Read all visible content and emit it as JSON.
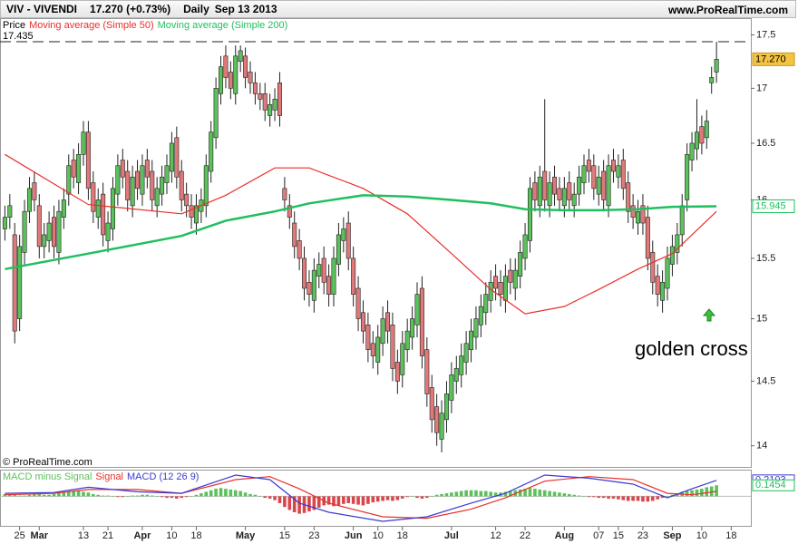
{
  "header": {
    "title": "VIV - VIVENDI",
    "last": "17.270 (+0.73%)",
    "period": "Daily",
    "date": "Sep 13 2013",
    "source": "www.ProRealTime.com",
    "copyright": "© ProRealTime.com"
  },
  "chart_data": [
    {
      "type": "candlestick",
      "log_scale": true,
      "grid": false,
      "xlim": [
        -1,
        152
      ],
      "ylim": [
        13.84,
        17.66
      ],
      "yticks": [
        14,
        14.5,
        15,
        15.5,
        16,
        16.5,
        17,
        17.5
      ],
      "xticks": [
        {
          "value": 3,
          "label": "25"
        },
        {
          "value": 7,
          "label": "Mar"
        },
        {
          "value": 16,
          "label": "13"
        },
        {
          "value": 21,
          "label": "21"
        },
        {
          "value": 28,
          "label": "Apr"
        },
        {
          "value": 34,
          "label": "10"
        },
        {
          "value": 39,
          "label": "18"
        },
        {
          "value": 49,
          "label": "May"
        },
        {
          "value": 57,
          "label": "15"
        },
        {
          "value": 63,
          "label": "23"
        },
        {
          "value": 71,
          "label": "Jun"
        },
        {
          "value": 76,
          "label": "10"
        },
        {
          "value": 81,
          "label": "18"
        },
        {
          "value": 91,
          "label": "Jul"
        },
        {
          "value": 100,
          "label": "12"
        },
        {
          "value": 106,
          "label": "22"
        },
        {
          "value": 114,
          "label": "Aug"
        },
        {
          "value": 121,
          "label": "07"
        },
        {
          "value": 125,
          "label": "15"
        },
        {
          "value": 130,
          "label": "23"
        },
        {
          "value": 136,
          "label": "Sep"
        },
        {
          "value": 142,
          "label": "10"
        },
        {
          "value": 148,
          "label": "18"
        }
      ],
      "reference_line": {
        "value": 17.435,
        "label": "17.435"
      },
      "annotation": "golden cross",
      "tags": [
        {
          "value": 17.27,
          "label": "17.270",
          "color": "#f5c342"
        },
        {
          "value": 15.945,
          "label": "15.945",
          "color": "#1fbf5f"
        }
      ],
      "series": [
        {
          "name": "Price",
          "up_color": "#5cc05c",
          "down_color": "#e07a7a",
          "open": [
            15.75,
            15.85,
            15.7,
            15.0,
            15.55,
            15.9,
            16.15,
            15.95,
            15.6,
            15.65,
            15.85,
            15.55,
            15.85,
            16.05,
            16.35,
            16.15,
            16.4,
            16.6,
            16.15,
            15.85,
            16.05,
            15.65,
            15.75,
            16.05,
            16.35,
            16.25,
            15.95,
            16.25,
            16.05,
            16.35,
            16.25,
            15.95,
            16.05,
            16.15,
            16.25,
            16.55,
            16.25,
            16.05,
            15.95,
            15.8,
            15.9,
            15.95,
            16.25,
            16.55,
            16.95,
            17.3,
            17.15,
            16.95,
            17.25,
            17.3,
            17.15,
            17.05,
            16.95,
            16.95,
            16.75,
            16.8,
            17.05,
            16.1,
            15.95,
            15.8,
            15.65,
            15.5,
            15.3,
            15.15,
            15.35,
            15.5,
            15.35,
            15.2,
            15.45,
            15.65,
            15.8,
            15.5,
            15.25,
            15.05,
            14.95,
            14.8,
            14.65,
            14.8,
            15.05,
            14.95,
            14.65,
            14.55,
            14.75,
            14.85,
            14.95,
            15.25,
            14.75,
            14.45,
            14.3,
            14.05,
            14.2,
            14.35,
            14.5,
            14.55,
            14.65,
            14.75,
            14.85,
            14.95,
            15.05,
            15.15,
            15.35,
            15.3,
            15.15,
            15.4,
            15.25,
            15.35,
            15.5,
            15.65,
            16.15,
            15.95,
            16.25,
            15.95,
            16.2,
            16.1,
            15.95,
            16.15,
            15.95,
            16.05,
            16.15,
            16.35,
            16.3,
            16.05,
            16.25,
            15.95,
            16.35,
            16.2,
            16.35,
            16.15,
            15.95,
            15.8,
            15.95,
            15.85,
            15.55,
            15.35,
            15.15,
            15.25,
            15.45,
            15.55,
            15.7,
            16.0,
            16.35,
            16.45,
            16.65,
            16.55,
            17.05,
            17.15
          ],
          "high": [
            15.95,
            16.05,
            15.8,
            15.7,
            16.0,
            16.2,
            16.25,
            16.05,
            15.8,
            15.9,
            15.95,
            16.0,
            16.1,
            16.4,
            16.45,
            16.5,
            16.7,
            16.7,
            16.25,
            16.1,
            16.15,
            15.9,
            16.2,
            16.4,
            16.45,
            16.35,
            16.3,
            16.35,
            16.4,
            16.45,
            16.35,
            16.2,
            16.3,
            16.4,
            16.6,
            16.65,
            16.35,
            16.15,
            16.05,
            16.05,
            16.1,
            16.4,
            16.7,
            17.1,
            17.3,
            17.4,
            17.25,
            17.4,
            17.4,
            17.38,
            17.25,
            17.15,
            17.05,
            17.05,
            16.95,
            17.0,
            17.15,
            16.2,
            16.05,
            15.9,
            15.75,
            15.6,
            15.4,
            15.5,
            15.55,
            15.6,
            15.45,
            15.6,
            15.8,
            15.85,
            15.9,
            15.6,
            15.35,
            15.15,
            15.05,
            14.9,
            14.95,
            15.1,
            15.15,
            15.05,
            14.75,
            14.9,
            15.0,
            15.1,
            15.3,
            15.35,
            14.85,
            14.55,
            14.4,
            14.35,
            14.5,
            14.65,
            14.7,
            14.8,
            14.9,
            15.0,
            15.1,
            15.2,
            15.3,
            15.4,
            15.45,
            15.4,
            15.45,
            15.5,
            15.5,
            15.65,
            15.8,
            16.2,
            16.25,
            16.3,
            16.9,
            16.25,
            16.3,
            16.2,
            16.2,
            16.25,
            16.15,
            16.3,
            16.4,
            16.45,
            16.4,
            16.3,
            16.35,
            16.4,
            16.45,
            16.4,
            16.45,
            16.25,
            16.05,
            16.0,
            16.05,
            15.95,
            15.65,
            15.45,
            15.4,
            15.6,
            15.7,
            15.8,
            16.05,
            16.5,
            16.6,
            16.9,
            16.75,
            16.8,
            17.2,
            17.435
          ],
          "low": [
            15.65,
            15.75,
            14.8,
            14.9,
            15.45,
            15.8,
            15.9,
            15.5,
            15.5,
            15.55,
            15.5,
            15.45,
            15.75,
            15.95,
            16.1,
            16.05,
            16.3,
            16.0,
            15.8,
            15.75,
            15.6,
            15.55,
            15.65,
            15.95,
            16.1,
            15.9,
            15.85,
            16.0,
            15.95,
            16.1,
            15.9,
            15.85,
            15.95,
            16.05,
            16.15,
            16.1,
            15.9,
            15.85,
            15.75,
            15.7,
            15.8,
            15.85,
            16.15,
            16.45,
            16.85,
            17.0,
            16.9,
            16.85,
            17.15,
            17.0,
            16.95,
            16.85,
            16.8,
            16.7,
            16.65,
            16.7,
            16.65,
            15.9,
            15.75,
            15.5,
            15.4,
            15.15,
            15.1,
            15.05,
            15.25,
            15.2,
            15.1,
            15.1,
            15.35,
            15.55,
            15.4,
            15.1,
            14.9,
            14.8,
            14.65,
            14.6,
            14.55,
            14.7,
            14.8,
            14.5,
            14.4,
            14.45,
            14.65,
            14.75,
            14.85,
            14.6,
            14.3,
            14.1,
            14.0,
            13.95,
            14.1,
            14.25,
            14.4,
            14.45,
            14.55,
            14.65,
            14.75,
            14.85,
            14.95,
            15.05,
            15.15,
            15.1,
            15.05,
            15.2,
            15.15,
            15.25,
            15.4,
            15.55,
            15.9,
            15.85,
            15.9,
            15.85,
            15.95,
            15.9,
            15.85,
            15.9,
            15.85,
            15.95,
            16.05,
            16.15,
            16.0,
            15.95,
            15.9,
            15.85,
            16.15,
            16.1,
            16.0,
            15.8,
            15.75,
            15.7,
            15.7,
            15.4,
            15.2,
            15.1,
            15.05,
            15.15,
            15.35,
            15.45,
            15.6,
            15.9,
            16.25,
            16.35,
            16.4,
            16.45,
            16.95,
            17.05
          ],
          "close": [
            15.85,
            15.95,
            14.9,
            15.6,
            15.9,
            16.1,
            16.0,
            15.6,
            15.7,
            15.8,
            15.6,
            15.9,
            16.0,
            16.3,
            16.2,
            16.4,
            16.6,
            16.1,
            15.9,
            16.0,
            15.7,
            15.8,
            16.1,
            16.3,
            16.2,
            16.0,
            16.2,
            16.1,
            16.3,
            16.2,
            16.0,
            16.1,
            16.2,
            16.3,
            16.5,
            16.2,
            16.0,
            15.95,
            15.85,
            15.95,
            16.0,
            16.3,
            16.6,
            17.0,
            17.2,
            17.1,
            17.0,
            17.3,
            17.35,
            17.1,
            17.05,
            16.95,
            16.9,
            16.8,
            16.85,
            16.9,
            16.75,
            16.0,
            15.85,
            15.6,
            15.5,
            15.25,
            15.2,
            15.4,
            15.45,
            15.3,
            15.2,
            15.5,
            15.7,
            15.75,
            15.5,
            15.2,
            15.0,
            14.9,
            14.75,
            14.7,
            14.85,
            15.0,
            14.9,
            14.6,
            14.5,
            14.8,
            14.9,
            15.0,
            15.2,
            14.7,
            14.4,
            14.2,
            14.1,
            14.25,
            14.4,
            14.55,
            14.6,
            14.7,
            14.8,
            14.9,
            15.0,
            15.1,
            15.2,
            15.3,
            15.25,
            15.2,
            15.35,
            15.3,
            15.4,
            15.55,
            15.7,
            16.1,
            16.0,
            16.2,
            16.0,
            16.15,
            16.05,
            16.0,
            16.1,
            16.0,
            16.05,
            16.2,
            16.3,
            16.25,
            16.1,
            16.2,
            16.0,
            16.3,
            16.25,
            16.3,
            16.1,
            15.9,
            15.85,
            15.9,
            15.8,
            15.5,
            15.3,
            15.2,
            15.3,
            15.5,
            15.6,
            15.7,
            15.95,
            16.4,
            16.5,
            16.6,
            16.5,
            16.7,
            17.1,
            17.27
          ]
        },
        {
          "name": "Moving average (Simple 50)",
          "color": "#e8302a",
          "x": [
            0,
            17,
            36,
            45,
            55,
            62,
            73,
            82,
            91,
            99,
            106,
            114,
            121,
            129,
            136,
            145
          ],
          "values": [
            16.4,
            15.96,
            15.88,
            16.04,
            16.28,
            16.28,
            16.1,
            15.88,
            15.54,
            15.24,
            15.04,
            15.1,
            15.24,
            15.41,
            15.54,
            15.9
          ]
        },
        {
          "name": "Moving average (Simple 200)",
          "color": "#1fbf5f",
          "x": [
            0,
            17,
            36,
            45,
            55,
            62,
            73,
            82,
            91,
            99,
            106,
            114,
            121,
            129,
            136,
            145
          ],
          "values": [
            15.41,
            15.54,
            15.69,
            15.82,
            15.9,
            15.97,
            16.04,
            16.03,
            16.0,
            15.97,
            15.92,
            15.91,
            15.91,
            15.92,
            15.94,
            15.945
          ]
        }
      ]
    },
    {
      "type": "macd",
      "xlim": [
        -1,
        152
      ],
      "ylim": [
        -0.39,
        0.34
      ],
      "tags": [
        {
          "value": 0.2103,
          "label": "0.2103",
          "color": "#3a3ad0"
        },
        {
          "value": 0.1454,
          "label": "0.1454",
          "color": "#1fbf5f"
        }
      ],
      "series": [
        {
          "name": "MACD minus Signal",
          "up_color": "#5cc05c",
          "down_color": "#d9464a",
          "values": [
            0.03,
            0.03,
            0.02,
            0.01,
            0.01,
            0.02,
            0.03,
            0.03,
            0.02,
            0.02,
            0.03,
            0.04,
            0.05,
            0.06,
            0.07,
            0.07,
            0.06,
            0.05,
            0.03,
            0.02,
            0.01,
            0.01,
            0.0,
            -0.01,
            -0.01,
            0.0,
            0.01,
            0.01,
            0.02,
            0.02,
            0.01,
            0.0,
            -0.01,
            -0.02,
            -0.02,
            -0.03,
            -0.02,
            -0.01,
            0.0,
            0.02,
            0.04,
            0.06,
            0.08,
            0.1,
            0.11,
            0.1,
            0.09,
            0.08,
            0.07,
            0.05,
            0.03,
            0.02,
            0.0,
            -0.02,
            -0.03,
            -0.05,
            -0.09,
            -0.14,
            -0.18,
            -0.21,
            -0.23,
            -0.22,
            -0.2,
            -0.18,
            -0.15,
            -0.12,
            -0.11,
            -0.13,
            -0.12,
            -0.1,
            -0.09,
            -0.1,
            -0.11,
            -0.12,
            -0.1,
            -0.08,
            -0.07,
            -0.06,
            -0.05,
            -0.06,
            -0.05,
            -0.03,
            -0.01,
            0.0,
            -0.02,
            -0.03,
            -0.02,
            0.0,
            0.02,
            0.03,
            0.04,
            0.05,
            0.06,
            0.07,
            0.08,
            0.08,
            0.08,
            0.07,
            0.07,
            0.06,
            0.05,
            0.05,
            0.06,
            0.07,
            0.08,
            0.09,
            0.1,
            0.11,
            0.1,
            0.09,
            0.08,
            0.07,
            0.06,
            0.05,
            0.04,
            0.03,
            0.02,
            0.01,
            0.0,
            -0.01,
            -0.01,
            -0.02,
            -0.02,
            -0.03,
            -0.03,
            -0.04,
            -0.05,
            -0.06,
            -0.06,
            -0.06,
            -0.07,
            -0.07,
            -0.06,
            -0.04,
            -0.02,
            0.0,
            0.02,
            0.04,
            0.06,
            0.07,
            0.08,
            0.09,
            0.1,
            0.12,
            0.13,
            0.1454
          ]
        },
        {
          "name": "Signal",
          "color": "#e8302a",
          "x": [
            0,
            10,
            17,
            27,
            36,
            47,
            54,
            60,
            66,
            77,
            86,
            95,
            102,
            110,
            119,
            128,
            135,
            140,
            145
          ],
          "values": [
            0.02,
            0.04,
            0.09,
            0.09,
            0.04,
            0.22,
            0.26,
            0.1,
            -0.09,
            -0.27,
            -0.29,
            -0.17,
            -0.02,
            0.2,
            0.26,
            0.22,
            0.04,
            0.02,
            0.0649
          ]
        },
        {
          "name": "MACD (12 26 9)",
          "color": "#3a3ad0",
          "x": [
            0,
            10,
            17,
            27,
            36,
            47,
            54,
            60,
            66,
            77,
            86,
            95,
            102,
            110,
            119,
            128,
            135,
            140,
            145
          ],
          "values": [
            0.04,
            0.05,
            0.12,
            0.06,
            0.04,
            0.28,
            0.22,
            -0.09,
            -0.21,
            -0.33,
            -0.27,
            -0.09,
            0.04,
            0.28,
            0.24,
            0.16,
            -0.02,
            0.1,
            0.2103
          ]
        }
      ]
    }
  ]
}
